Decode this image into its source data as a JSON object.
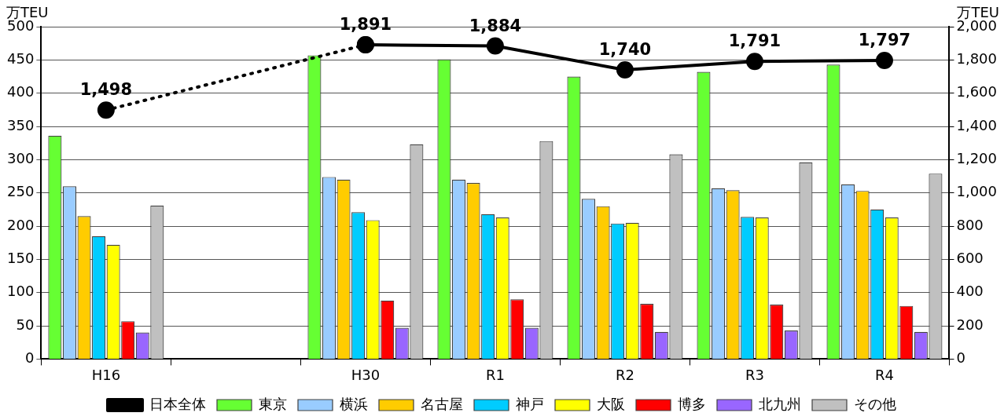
{
  "chart_data": {
    "type": "bar",
    "ylabel": "万TEU",
    "y2label": "万TEU",
    "categories": [
      "H16",
      null,
      "H30",
      "R1",
      "R2",
      "R3",
      "R4"
    ],
    "series": [
      {
        "name": "東京",
        "color": "#66ff33",
        "values": [
          336,
          null,
          457,
          451,
          425,
          432,
          443
        ]
      },
      {
        "name": "横浜",
        "color": "#99ccff",
        "values": [
          260,
          null,
          274,
          270,
          241,
          257,
          263
        ]
      },
      {
        "name": "名古屋",
        "color": "#ffcc00",
        "values": [
          215,
          null,
          270,
          265,
          230,
          254,
          253
        ]
      },
      {
        "name": "神戸",
        "color": "#00ccff",
        "values": [
          185,
          null,
          221,
          218,
          204,
          214,
          225
        ]
      },
      {
        "name": "大阪",
        "color": "#ffff00",
        "values": [
          172,
          null,
          209,
          213,
          205,
          213,
          213
        ]
      },
      {
        "name": "博多",
        "color": "#ff0000",
        "values": [
          57,
          null,
          88,
          90,
          83,
          82,
          80
        ]
      },
      {
        "name": "北九州",
        "color": "#9966ff",
        "values": [
          40,
          null,
          47,
          47,
          41,
          43,
          41
        ]
      },
      {
        "name": "その他",
        "color": "#c0c0c0",
        "values": [
          231,
          null,
          323,
          328,
          308,
          296,
          279
        ]
      },
      {
        "type": "line",
        "axis": "y2",
        "color": "#000000",
        "line_style": "dotted",
        "marker": "circle",
        "values": [
          1498,
          null,
          1891,
          null,
          null,
          null,
          null
        ],
        "value_labels": [
          "1,498",
          null,
          null,
          null,
          null,
          null,
          null
        ]
      },
      {
        "type": "line",
        "axis": "y2",
        "name": "日本全体",
        "color": "#000000",
        "line_style": "solid",
        "marker": "circle",
        "values": [
          null,
          null,
          1891,
          1884,
          1740,
          1791,
          1797
        ],
        "value_labels": [
          null,
          null,
          "1,891",
          "1,884",
          "1,740",
          "1,791",
          "1,797"
        ]
      }
    ],
    "ylim": [
      0,
      500
    ],
    "yticks": [
      0,
      50,
      100,
      150,
      200,
      250,
      300,
      350,
      400,
      450,
      500
    ],
    "y2lim": [
      0,
      2000
    ],
    "y2ticks": [
      {
        "value": 0,
        "label": "0"
      },
      {
        "value": 200,
        "label": "200"
      },
      {
        "value": 400,
        "label": "400"
      },
      {
        "value": 600,
        "label": "600"
      },
      {
        "value": 800,
        "label": "800"
      },
      {
        "value": 1000,
        "label": "1,000"
      },
      {
        "value": 1200,
        "label": "1,200"
      },
      {
        "value": 1400,
        "label": "1,400"
      },
      {
        "value": 1600,
        "label": "1,600"
      },
      {
        "value": 1800,
        "label": "1,800"
      },
      {
        "value": 2000,
        "label": "2,000"
      }
    ],
    "grid": "y",
    "legend": "bottom"
  }
}
